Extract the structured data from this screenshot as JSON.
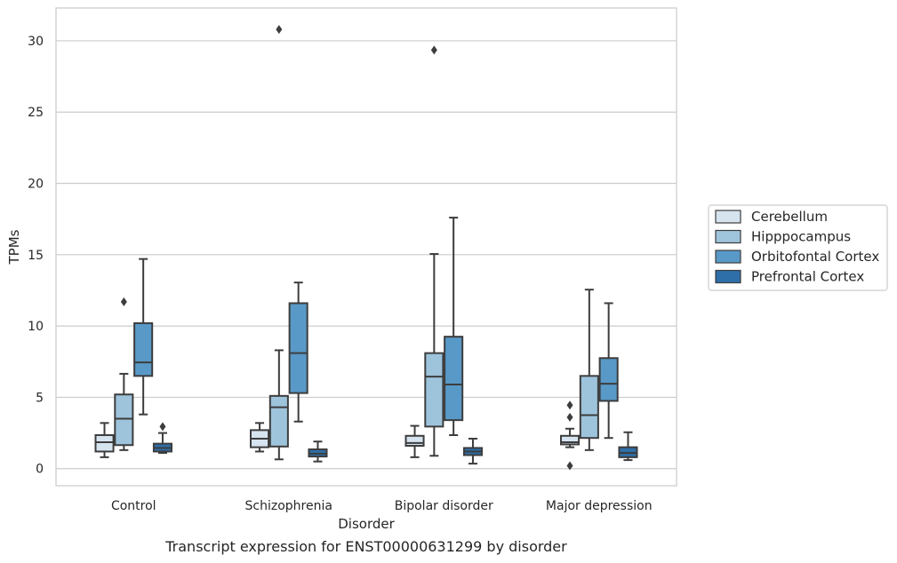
{
  "caption": "Transcript expression for ENST00000631299 by disorder",
  "chart_data": {
    "type": "boxplot",
    "xlabel": "Disorder",
    "ylabel": "TPMs",
    "ylim": [
      -1.2,
      32.3
    ],
    "yticks": [
      0,
      5,
      10,
      15,
      20,
      25,
      30
    ],
    "grid": true,
    "legend_position": "right-center",
    "categories": [
      "Control",
      "Schizophrenia",
      "Bipolar disorder",
      "Major depression"
    ],
    "series": [
      {
        "name": "Cerebellum",
        "color": "#d6e4f0",
        "boxes": [
          {
            "whisker_low": 0.8,
            "q1": 1.2,
            "median": 1.85,
            "q3": 2.35,
            "whisker_high": 3.2,
            "outliers": []
          },
          {
            "whisker_low": 1.2,
            "q1": 1.5,
            "median": 2.1,
            "q3": 2.7,
            "whisker_high": 3.2,
            "outliers": []
          },
          {
            "whisker_low": 0.8,
            "q1": 1.6,
            "median": 1.8,
            "q3": 2.3,
            "whisker_high": 3.0,
            "outliers": []
          },
          {
            "whisker_low": 1.5,
            "q1": 1.7,
            "median": 1.85,
            "q3": 2.3,
            "whisker_high": 2.8,
            "outliers": [
              4.45,
              3.6,
              0.2
            ]
          }
        ]
      },
      {
        "name": "Hipppocampus",
        "color": "#9ec4dc",
        "boxes": [
          {
            "whisker_low": 1.3,
            "q1": 1.65,
            "median": 3.5,
            "q3": 5.2,
            "whisker_high": 6.65,
            "outliers": [
              11.7
            ]
          },
          {
            "whisker_low": 0.65,
            "q1": 1.55,
            "median": 4.3,
            "q3": 5.1,
            "whisker_high": 8.3,
            "outliers": [
              30.8
            ]
          },
          {
            "whisker_low": 0.9,
            "q1": 2.95,
            "median": 6.45,
            "q3": 8.1,
            "whisker_high": 15.05,
            "outliers": [
              29.35
            ]
          },
          {
            "whisker_low": 1.3,
            "q1": 2.15,
            "median": 3.75,
            "q3": 6.5,
            "whisker_high": 12.55,
            "outliers": []
          }
        ]
      },
      {
        "name": "Orbitofontal Cortex",
        "color": "#5899c7",
        "boxes": [
          {
            "whisker_low": 3.8,
            "q1": 6.5,
            "median": 7.45,
            "q3": 10.2,
            "whisker_high": 14.7,
            "outliers": []
          },
          {
            "whisker_low": 3.3,
            "q1": 5.3,
            "median": 8.1,
            "q3": 11.6,
            "whisker_high": 13.05,
            "outliers": []
          },
          {
            "whisker_low": 2.35,
            "q1": 3.4,
            "median": 5.9,
            "q3": 9.25,
            "whisker_high": 17.6,
            "outliers": []
          },
          {
            "whisker_low": 2.15,
            "q1": 4.75,
            "median": 5.95,
            "q3": 7.75,
            "whisker_high": 11.6,
            "outliers": []
          }
        ]
      },
      {
        "name": "Prefrontal Cortex",
        "color": "#2e6ea9",
        "boxes": [
          {
            "whisker_low": 1.1,
            "q1": 1.2,
            "median": 1.45,
            "q3": 1.75,
            "whisker_high": 2.5,
            "outliers": [
              2.95
            ]
          },
          {
            "whisker_low": 0.5,
            "q1": 0.85,
            "median": 1.05,
            "q3": 1.35,
            "whisker_high": 1.9,
            "outliers": []
          },
          {
            "whisker_low": 0.35,
            "q1": 0.95,
            "median": 1.2,
            "q3": 1.45,
            "whisker_high": 2.1,
            "outliers": []
          },
          {
            "whisker_low": 0.6,
            "q1": 0.8,
            "median": 1.1,
            "q3": 1.5,
            "whisker_high": 2.55,
            "outliers": []
          }
        ]
      }
    ]
  }
}
